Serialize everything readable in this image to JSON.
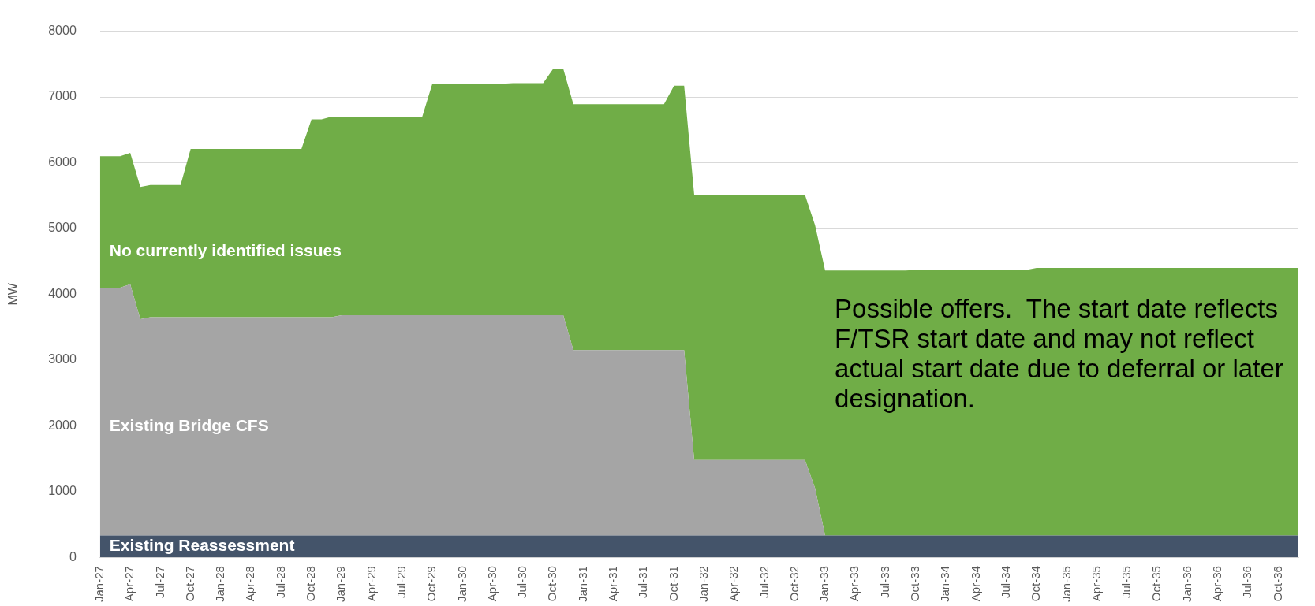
{
  "chart_data": {
    "type": "area",
    "stacked": true,
    "ylabel": "MW",
    "ylim": [
      0,
      8000
    ],
    "yticks": [
      0,
      1000,
      2000,
      3000,
      4000,
      5000,
      6000,
      7000,
      8000
    ],
    "grid": "y",
    "legend": false,
    "categories": [
      "Jan-27",
      null,
      null,
      "Apr-27",
      null,
      null,
      "Jul-27",
      null,
      null,
      "Oct-27",
      null,
      null,
      "Jan-28",
      null,
      null,
      "Apr-28",
      null,
      null,
      "Jul-28",
      null,
      null,
      "Oct-28",
      null,
      null,
      "Jan-29",
      null,
      null,
      "Apr-29",
      null,
      null,
      "Jul-29",
      null,
      null,
      "Oct-29",
      null,
      null,
      "Jan-30",
      null,
      null,
      "Apr-30",
      null,
      null,
      "Jul-30",
      null,
      null,
      "Oct-30",
      null,
      null,
      "Jan-31",
      null,
      null,
      "Apr-31",
      null,
      null,
      "Jul-31",
      null,
      null,
      "Oct-31",
      null,
      null,
      "Jan-32",
      null,
      null,
      "Apr-32",
      null,
      null,
      "Jul-32",
      null,
      null,
      "Oct-32",
      null,
      null,
      "Jan-33",
      null,
      null,
      "Apr-33",
      null,
      null,
      "Jul-33",
      null,
      null,
      "Oct-33",
      null,
      null,
      "Jan-34",
      null,
      null,
      "Apr-34",
      null,
      null,
      "Jul-34",
      null,
      null,
      "Oct-34",
      null,
      null,
      "Jan-35",
      null,
      null,
      "Apr-35",
      null,
      null,
      "Jul-35",
      null,
      null,
      "Oct-35",
      null,
      null,
      "Jan-36",
      null,
      null,
      "Apr-36",
      null,
      null,
      "Jul-36",
      null,
      null,
      "Oct-36",
      null,
      null
    ],
    "series": [
      {
        "name": "Existing Reassessment",
        "color": "#44546a",
        "values": [
          330,
          330,
          330,
          330,
          330,
          330,
          330,
          330,
          330,
          330,
          330,
          330,
          330,
          330,
          330,
          330,
          330,
          330,
          330,
          330,
          330,
          330,
          330,
          330,
          330,
          330,
          330,
          330,
          330,
          330,
          330,
          330,
          330,
          330,
          330,
          330,
          330,
          330,
          330,
          330,
          330,
          330,
          330,
          330,
          330,
          330,
          330,
          330,
          330,
          330,
          330,
          330,
          330,
          330,
          330,
          330,
          330,
          330,
          330,
          330,
          330,
          330,
          330,
          330,
          330,
          330,
          330,
          330,
          330,
          330,
          330,
          330,
          330,
          330,
          330,
          330,
          330,
          330,
          330,
          330,
          330,
          330,
          330,
          330,
          330,
          330,
          330,
          330,
          330,
          330,
          330,
          330,
          330,
          330,
          330,
          330,
          330,
          330,
          330,
          330,
          330,
          330,
          330,
          330,
          330,
          330,
          330,
          330,
          330,
          330,
          330,
          330,
          330,
          330,
          330,
          330,
          330,
          330,
          330,
          330
        ]
      },
      {
        "name": "Existing Bridge CFS",
        "color": "#a5a5a5",
        "values": [
          3770,
          3770,
          3770,
          3820,
          3290,
          3320,
          3320,
          3320,
          3320,
          3320,
          3320,
          3320,
          3320,
          3320,
          3320,
          3320,
          3320,
          3320,
          3320,
          3320,
          3320,
          3320,
          3320,
          3320,
          3350,
          3350,
          3350,
          3350,
          3350,
          3350,
          3350,
          3350,
          3350,
          3350,
          3350,
          3350,
          3350,
          3350,
          3350,
          3350,
          3350,
          3350,
          3350,
          3350,
          3350,
          3350,
          3350,
          2820,
          2820,
          2820,
          2820,
          2820,
          2820,
          2820,
          2820,
          2820,
          2820,
          2820,
          2820,
          1150,
          1150,
          1150,
          1150,
          1150,
          1150,
          1150,
          1150,
          1150,
          1150,
          1150,
          1150,
          720,
          0,
          0,
          0,
          0,
          0,
          0,
          0,
          0,
          0,
          0,
          0,
          0,
          0,
          0,
          0,
          0,
          0,
          0,
          0,
          0,
          0,
          0,
          0,
          0,
          0,
          0,
          0,
          0,
          0,
          0,
          0,
          0,
          0,
          0,
          0,
          0,
          0,
          0,
          0,
          0,
          0,
          0,
          0,
          0,
          0,
          0,
          0,
          0
        ]
      },
      {
        "name": "No currently identified issues",
        "color": "#70ad47",
        "values": [
          2000,
          2000,
          2000,
          2000,
          2010,
          2010,
          2010,
          2010,
          2010,
          2560,
          2560,
          2560,
          2560,
          2560,
          2560,
          2560,
          2560,
          2560,
          2560,
          2560,
          2560,
          3010,
          3010,
          3050,
          3020,
          3020,
          3020,
          3020,
          3020,
          3020,
          3020,
          3020,
          3020,
          3520,
          3520,
          3520,
          3520,
          3520,
          3520,
          3520,
          3520,
          3530,
          3530,
          3530,
          3530,
          3750,
          3750,
          3740,
          3740,
          3740,
          3740,
          3740,
          3740,
          3740,
          3740,
          3740,
          3740,
          4020,
          4020,
          4030,
          4030,
          4030,
          4030,
          4030,
          4030,
          4030,
          4030,
          4030,
          4030,
          4030,
          4030,
          4000,
          4030,
          4030,
          4030,
          4030,
          4030,
          4030,
          4030,
          4030,
          4030,
          4040,
          4040,
          4040,
          4040,
          4040,
          4040,
          4040,
          4040,
          4040,
          4040,
          4040,
          4040,
          4070,
          4070,
          4070,
          4070,
          4070,
          4070,
          4070,
          4070,
          4070,
          4070,
          4070,
          4070,
          4070,
          4070,
          4070,
          4070,
          4070,
          4070,
          4070,
          4070,
          4070,
          4070,
          4070,
          4070,
          4070,
          4070,
          4070
        ]
      }
    ],
    "annotations": [
      "Possible offers.  The start date reflects F/TSR start date and may not reflect actual start date due to deferral or later designation."
    ]
  }
}
